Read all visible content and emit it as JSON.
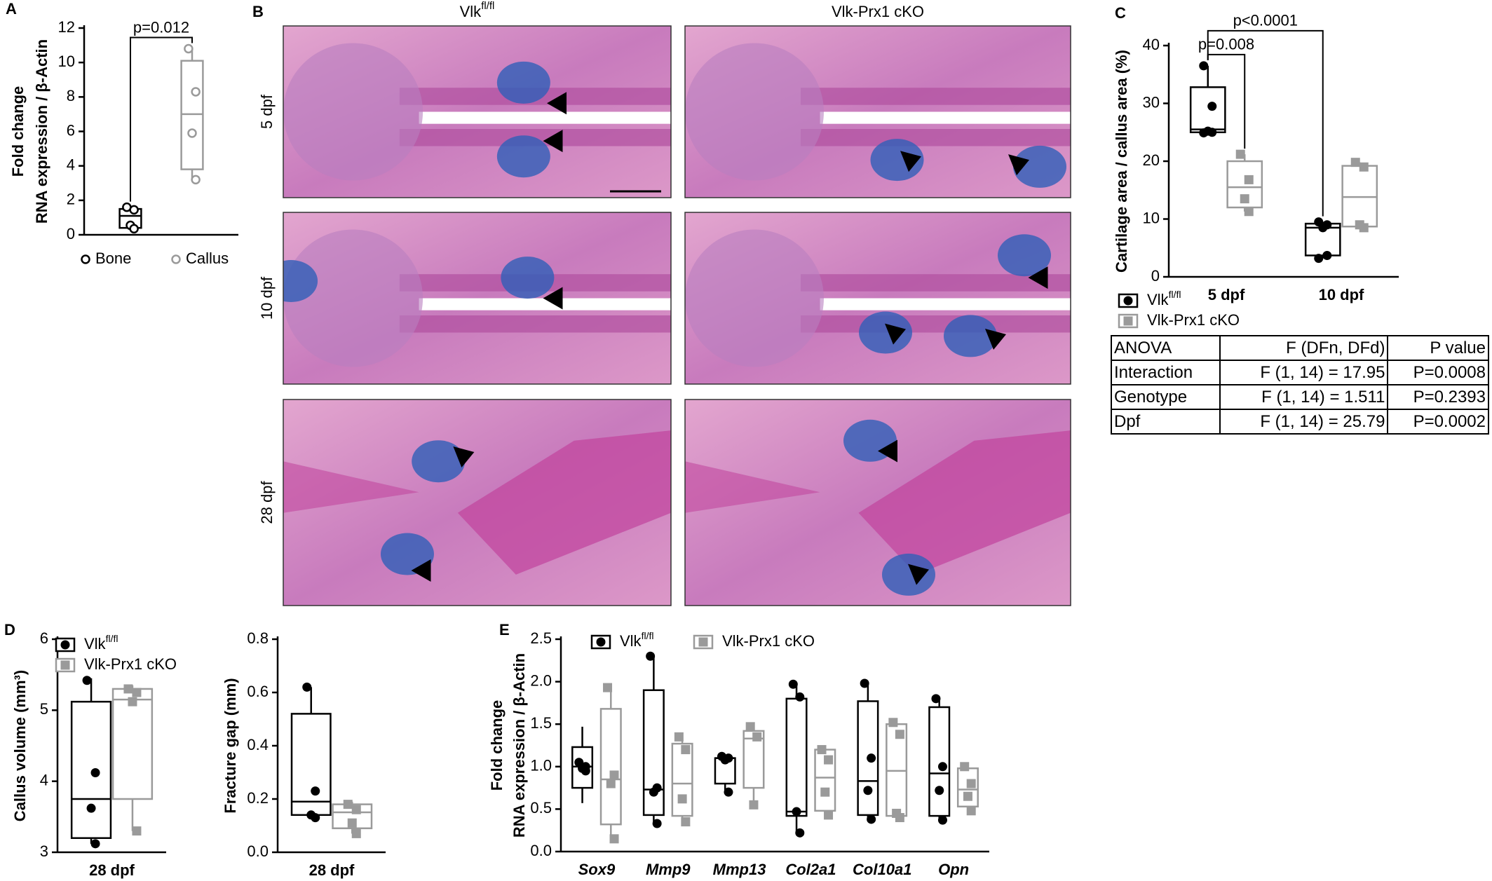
{
  "chart_data": [
    {
      "type": "box",
      "panel_label": "A",
      "ylabel": [
        "Fold change",
        "RNA expression / β-Actin"
      ],
      "categories": [
        null
      ],
      "ylim": [
        0,
        12
      ],
      "yticks": [
        0,
        2,
        4,
        6,
        8,
        10,
        12
      ],
      "legend": "bottom",
      "annotations": [
        {
          "text": "p=0.012",
          "between": [
            [
              0,
              0
            ],
            [
              0,
              1
            ]
          ]
        }
      ],
      "series": [
        {
          "name": "Bone",
          "color": "#000000",
          "marker": "open-circle",
          "boxes": [
            {
              "min": 0.3,
              "q1": 0.4,
              "median": 1.1,
              "q3": 1.5,
              "max": 1.6,
              "points": [
                1.6,
                1.45,
                0.55,
                0.35
              ]
            }
          ]
        },
        {
          "name": "Callus",
          "color": "#9a9a9a",
          "marker": "open-circle",
          "boxes": [
            {
              "min": 3.2,
              "q1": 3.8,
              "median": 7.0,
              "q3": 10.1,
              "max": 10.8,
              "points": [
                10.8,
                8.3,
                5.9,
                3.2
              ]
            }
          ]
        }
      ]
    },
    {
      "type": "box",
      "panel_label": "C",
      "ylabel": "Cartilage area / callus area (%)",
      "categories": [
        "5 dpf",
        "10 dpf"
      ],
      "ylim": [
        0,
        40
      ],
      "yticks": [
        0,
        10,
        20,
        30,
        40
      ],
      "legend": "bottom",
      "annotations": [
        {
          "text": "p=0.008",
          "between": [
            [
              0,
              0
            ],
            [
              0,
              1
            ]
          ]
        },
        {
          "text": "p<0.0001",
          "between": [
            [
              0,
              0
            ],
            [
              1,
              0
            ]
          ]
        }
      ],
      "series": [
        {
          "name": "Vlk",
          "name_superscript": "fl/fl",
          "color": "#000000",
          "marker": "circle",
          "boxes": [
            {
              "min": 24.9,
              "q1": 25.0,
              "median": 25.5,
              "q3": 32.8,
              "max": 36.5,
              "points": [
                36.5,
                29.5,
                25.2,
                25.0,
                24.9
              ]
            },
            {
              "min": 3.2,
              "q1": 3.7,
              "median": 8.5,
              "q3": 9.2,
              "max": 9.5,
              "points": [
                9.5,
                9.0,
                8.5,
                3.7,
                3.2
              ]
            }
          ]
        },
        {
          "name": "Vlk-Prx1 cKO",
          "color": "#9a9a9a",
          "marker": "square",
          "boxes": [
            {
              "min": 11.3,
              "q1": 12.0,
              "median": 15.5,
              "q3": 20.0,
              "max": 21.2,
              "points": [
                21.2,
                16.8,
                13.5,
                11.3
              ]
            },
            {
              "min": 8.5,
              "q1": 8.7,
              "median": 13.8,
              "q3": 19.2,
              "max": 19.8,
              "points": [
                19.8,
                19.0,
                9.0,
                8.5
              ]
            }
          ]
        }
      ]
    },
    {
      "type": "box",
      "panel_label": "D",
      "ylabel": "Callus volume (mm³)",
      "categories": [
        "28 dpf"
      ],
      "ylim": [
        3,
        6
      ],
      "yticks": [
        3,
        4,
        5,
        6
      ],
      "legend": "top",
      "series": [
        {
          "name": "Vlk",
          "name_superscript": "fl/fl",
          "color": "#000000",
          "marker": "circle",
          "boxes": [
            {
              "min": 3.12,
              "q1": 3.2,
              "median": 3.75,
              "q3": 5.12,
              "max": 5.45,
              "points": [
                5.42,
                4.12,
                3.62,
                3.12
              ]
            }
          ]
        },
        {
          "name": "Vlk-Prx1 cKO",
          "color": "#9a9a9a",
          "marker": "square",
          "boxes": [
            {
              "min": 3.3,
              "q1": 3.75,
              "median": 5.15,
              "q3": 5.3,
              "max": 5.35,
              "points": [
                5.3,
                5.25,
                5.12,
                3.3
              ]
            }
          ]
        }
      ]
    },
    {
      "type": "box",
      "ylabel": "Fracture gap (mm)",
      "categories": [
        "28 dpf"
      ],
      "ylim": [
        0,
        0.8
      ],
      "yticks": [
        {
          "value": 0,
          "label": "0.0"
        },
        0.2,
        0.4,
        0.6,
        0.8
      ],
      "series": [
        {
          "color": "#000000",
          "marker": "circle",
          "boxes": [
            {
              "min": 0.13,
              "q1": 0.14,
              "median": 0.19,
              "q3": 0.52,
              "max": 0.62,
              "points": [
                0.62,
                0.23,
                0.14,
                0.13
              ]
            }
          ]
        },
        {
          "color": "#9a9a9a",
          "marker": "square",
          "boxes": [
            {
              "min": 0.07,
              "q1": 0.09,
              "median": 0.15,
              "q3": 0.18,
              "max": 0.19,
              "points": [
                0.18,
                0.16,
                0.11,
                0.07
              ]
            }
          ]
        }
      ]
    },
    {
      "type": "box",
      "panel_label": "E",
      "ylabel": [
        "Fold change",
        "RNA expression / β-Actin"
      ],
      "categories": [
        "Sox9",
        "Mmp9",
        "Mmp13",
        "Col2a1",
        "Col10a1",
        "Opn"
      ],
      "ylim": [
        0,
        2.5
      ],
      "yticks": [
        {
          "value": 0,
          "label": "0.0"
        },
        0.5,
        {
          "value": 1,
          "label": "1.0"
        },
        1.5,
        {
          "value": 2,
          "label": "2.0"
        },
        2.5
      ],
      "legend": "top",
      "series": [
        {
          "name": "Vlk",
          "name_superscript": "fl/fl",
          "color": "#000000",
          "marker": "circle",
          "boxes": [
            {
              "min": 0.57,
              "q1": 0.75,
              "median": 1.0,
              "q3": 1.23,
              "max": 1.47,
              "points": [
                1.05,
                1.0,
                0.98,
                0.95
              ]
            },
            {
              "min": 0.33,
              "q1": 0.43,
              "median": 0.73,
              "q3": 1.9,
              "max": 2.3,
              "points": [
                2.3,
                0.75,
                0.7,
                0.33
              ]
            },
            {
              "min": 0.7,
              "q1": 0.8,
              "median": 1.1,
              "q3": 1.1,
              "max": 1.12,
              "points": [
                1.12,
                1.1,
                1.08,
                0.7
              ]
            },
            {
              "min": 0.22,
              "q1": 0.42,
              "median": 0.47,
              "q3": 1.8,
              "max": 1.97,
              "points": [
                1.97,
                1.82,
                0.47,
                0.22
              ]
            },
            {
              "min": 0.38,
              "q1": 0.43,
              "median": 0.83,
              "q3": 1.77,
              "max": 1.98,
              "points": [
                1.98,
                1.1,
                0.72,
                0.38
              ]
            },
            {
              "min": 0.37,
              "q1": 0.42,
              "median": 0.92,
              "q3": 1.7,
              "max": 1.82,
              "points": [
                1.8,
                1.0,
                0.72,
                0.37
              ]
            }
          ]
        },
        {
          "name": "Vlk-Prx1 cKO",
          "color": "#9a9a9a",
          "marker": "square",
          "boxes": [
            {
              "min": 0.15,
              "q1": 0.32,
              "median": 0.85,
              "q3": 1.68,
              "max": 1.93,
              "points": [
                1.93,
                0.9,
                0.8,
                0.15
              ]
            },
            {
              "min": 0.35,
              "q1": 0.42,
              "median": 0.8,
              "q3": 1.27,
              "max": 1.37,
              "points": [
                1.35,
                1.2,
                0.62,
                0.35
              ]
            },
            {
              "min": 0.55,
              "q1": 0.75,
              "median": 1.33,
              "q3": 1.42,
              "max": 1.48,
              "points": [
                1.47,
                1.35,
                0.55
              ]
            },
            {
              "min": 0.43,
              "q1": 0.48,
              "median": 0.87,
              "q3": 1.2,
              "max": 1.22,
              "points": [
                1.2,
                1.08,
                0.7,
                0.43
              ]
            },
            {
              "min": 0.4,
              "q1": 0.42,
              "median": 0.95,
              "q3": 1.5,
              "max": 1.55,
              "points": [
                1.52,
                1.38,
                0.45,
                0.4
              ]
            },
            {
              "min": 0.48,
              "q1": 0.53,
              "median": 0.73,
              "q3": 0.98,
              "max": 1.05,
              "points": [
                1.0,
                0.8,
                0.65,
                0.48
              ]
            }
          ]
        }
      ]
    }
  ],
  "histology": {
    "panel_label": "B",
    "columns": [
      {
        "text": "Vlk",
        "superscript": "fl/fl"
      },
      {
        "text": "Vlk-Prx1 cKO"
      }
    ],
    "rows": [
      "5 dpf",
      "10 dpf",
      "28 dpf"
    ]
  },
  "anova_table": {
    "header": [
      "ANOVA",
      "F (DFn, DFd)",
      "P value"
    ],
    "rows": [
      [
        "Interaction",
        "F (1, 14) = 17.95",
        "P=0.0008"
      ],
      [
        "Genotype",
        "F (1, 14) = 1.511",
        "P=0.2393"
      ],
      [
        "Dpf",
        "F (1, 14) = 25.79",
        "P=0.0002"
      ]
    ]
  }
}
